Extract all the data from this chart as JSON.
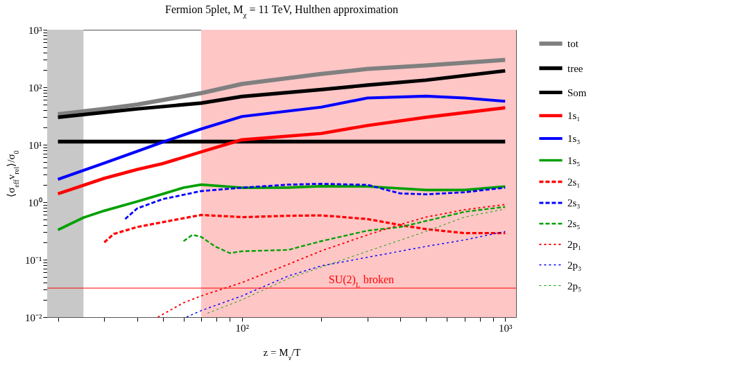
{
  "chart_data": {
    "type": "line",
    "title": "Fermion 5plet, M$_{χ}$ = 11 TeV, Hulthen approximation",
    "xlabel": "z = M$_{χ}$/T",
    "ylabel": "⟨σ$_{eff}$v$_{rel}$⟩/σ$_{0}$",
    "log": "xy",
    "legend": "right",
    "marker": "none",
    "xlim": [
      18.2,
      1100
    ],
    "ylim": [
      0.01,
      1000
    ],
    "xticks": [
      {
        "value": 20,
        "label": null
      },
      {
        "value": 30,
        "label": null
      },
      {
        "value": 40,
        "label": null
      },
      {
        "value": 50,
        "label": null
      },
      {
        "value": 60,
        "label": null
      },
      {
        "value": 70,
        "label": null
      },
      {
        "value": 80,
        "label": null
      },
      {
        "value": 90,
        "label": null
      },
      {
        "value": 100,
        "label": "10²"
      },
      {
        "value": 200,
        "label": null
      },
      {
        "value": 300,
        "label": null
      },
      {
        "value": 400,
        "label": null
      },
      {
        "value": 500,
        "label": null
      },
      {
        "value": 600,
        "label": null
      },
      {
        "value": 700,
        "label": null
      },
      {
        "value": 800,
        "label": null
      },
      {
        "value": 900,
        "label": null
      },
      {
        "value": 1000,
        "label": "10³"
      }
    ],
    "yticks": [
      {
        "value": 0.01,
        "label": "10⁻²"
      },
      {
        "value": 0.02,
        "label": null
      },
      {
        "value": 0.03,
        "label": null
      },
      {
        "value": 0.04,
        "label": null
      },
      {
        "value": 0.05,
        "label": null
      },
      {
        "value": 0.06,
        "label": null
      },
      {
        "value": 0.07,
        "label": null
      },
      {
        "value": 0.08,
        "label": null
      },
      {
        "value": 0.09,
        "label": null
      },
      {
        "value": 0.1,
        "label": "10⁻¹"
      },
      {
        "value": 0.2,
        "label": null
      },
      {
        "value": 0.3,
        "label": null
      },
      {
        "value": 0.4,
        "label": null
      },
      {
        "value": 0.5,
        "label": null
      },
      {
        "value": 0.6,
        "label": null
      },
      {
        "value": 0.7,
        "label": null
      },
      {
        "value": 0.8,
        "label": null
      },
      {
        "value": 0.9,
        "label": null
      },
      {
        "value": 1,
        "label": "10⁰"
      },
      {
        "value": 2,
        "label": null
      },
      {
        "value": 3,
        "label": null
      },
      {
        "value": 4,
        "label": null
      },
      {
        "value": 5,
        "label": null
      },
      {
        "value": 6,
        "label": null
      },
      {
        "value": 7,
        "label": null
      },
      {
        "value": 8,
        "label": null
      },
      {
        "value": 9,
        "label": null
      },
      {
        "value": 10,
        "label": "10¹"
      },
      {
        "value": 20,
        "label": null
      },
      {
        "value": 30,
        "label": null
      },
      {
        "value": 40,
        "label": null
      },
      {
        "value": 50,
        "label": null
      },
      {
        "value": 60,
        "label": null
      },
      {
        "value": 70,
        "label": null
      },
      {
        "value": 80,
        "label": null
      },
      {
        "value": 90,
        "label": null
      },
      {
        "value": 100,
        "label": "10²"
      },
      {
        "value": 200,
        "label": null
      },
      {
        "value": 300,
        "label": null
      },
      {
        "value": 400,
        "label": null
      },
      {
        "value": 500,
        "label": null
      },
      {
        "value": 600,
        "label": null
      },
      {
        "value": 700,
        "label": null
      },
      {
        "value": 800,
        "label": null
      },
      {
        "value": 900,
        "label": null
      },
      {
        "value": 1000,
        "label": "10³"
      }
    ],
    "bands": [
      {
        "axis": "x",
        "from": 18.2,
        "to": 25,
        "color": "#c8c8c8"
      },
      {
        "axis": "x",
        "from": 70,
        "to": 1100,
        "color": "#ffc6c6"
      }
    ],
    "ref_lines": [
      {
        "axis": "y",
        "value": 0.032,
        "label": "SU(2)$_{L}$ broken",
        "color": "#ff0000"
      }
    ],
    "series": [
      {
        "name": "tot",
        "color": "#808080",
        "line_style": "solid",
        "x": [
          20,
          30,
          40,
          70,
          100,
          200,
          300,
          500,
          1000
        ],
        "values": [
          34,
          42,
          50,
          79,
          114,
          171,
          208,
          239,
          300
        ]
      },
      {
        "name": "tree",
        "color": "#000000",
        "line_style": "solid",
        "x": [
          20,
          1000
        ],
        "values": [
          11.3,
          11.3
        ]
      },
      {
        "name": "Som",
        "color": "#000000",
        "line_style": "solid",
        "x": [
          20,
          40,
          70,
          100,
          200,
          300,
          500,
          1000
        ],
        "values": [
          30,
          42,
          53,
          69,
          91,
          109,
          133,
          193
        ]
      },
      {
        "name": "1s₁",
        "color": "#ff0000",
        "line_style": "solid",
        "x": [
          20,
          30,
          40,
          50,
          70,
          100,
          200,
          300,
          500,
          1000
        ],
        "values": [
          1.4,
          2.6,
          3.7,
          4.7,
          7.5,
          12.2,
          15.7,
          21.6,
          30,
          44
        ]
      },
      {
        "name": "1s₃",
        "color": "#0000ff",
        "line_style": "solid",
        "x": [
          20,
          30,
          40,
          50,
          70,
          100,
          200,
          300,
          500,
          700,
          1000
        ],
        "values": [
          2.5,
          4.8,
          7.7,
          11.1,
          18.8,
          31,
          45,
          65,
          70,
          65,
          57
        ]
      },
      {
        "name": "1s₅",
        "color": "#00a000",
        "line_style": "solid",
        "x": [
          20,
          25,
          30,
          40,
          50,
          60,
          70,
          100,
          150,
          200,
          300,
          500,
          700,
          1000
        ],
        "values": [
          0.33,
          0.54,
          0.71,
          1.03,
          1.39,
          1.79,
          2.02,
          1.79,
          1.8,
          1.9,
          1.88,
          1.63,
          1.63,
          1.88
        ]
      },
      {
        "name": "2s₁",
        "color": "#ff0000",
        "line_style": "dashed",
        "x": [
          30,
          32.6,
          40,
          50,
          70,
          100,
          150,
          200,
          300,
          400,
          500,
          700,
          1000
        ],
        "values": [
          0.2,
          0.28,
          0.37,
          0.45,
          0.6,
          0.55,
          0.58,
          0.59,
          0.51,
          0.4,
          0.34,
          0.29,
          0.29
        ]
      },
      {
        "name": "2s₃",
        "color": "#0000ff",
        "line_style": "dashed",
        "x": [
          36,
          40,
          50,
          70,
          100,
          150,
          200,
          300,
          400,
          500,
          700,
          1000
        ],
        "values": [
          0.51,
          0.78,
          1.13,
          1.56,
          1.79,
          2.02,
          2.09,
          2.0,
          1.42,
          1.37,
          1.49,
          1.79
        ]
      },
      {
        "name": "2s₅",
        "color": "#00a000",
        "line_style": "dashed",
        "x": [
          60,
          64.8,
          70,
          79,
          90,
          100,
          150,
          200,
          300,
          400,
          500,
          700,
          1000
        ],
        "values": [
          0.21,
          0.27,
          0.25,
          0.17,
          0.13,
          0.14,
          0.148,
          0.21,
          0.32,
          0.37,
          0.47,
          0.68,
          0.83
        ]
      },
      {
        "name": "2p₁",
        "color": "#ff0000",
        "line_style": "dotted",
        "x": [
          47.9,
          60,
          70,
          100,
          150,
          200,
          300,
          400,
          500,
          700,
          1000
        ],
        "values": [
          0.01,
          0.0178,
          0.0234,
          0.04,
          0.083,
          0.142,
          0.27,
          0.41,
          0.55,
          0.74,
          0.91
        ]
      },
      {
        "name": "2p₃",
        "color": "#0000ff",
        "line_style": "dotted",
        "x": [
          61.6,
          70,
          100,
          150,
          200,
          300,
          500,
          700,
          1000
        ],
        "values": [
          0.01,
          0.013,
          0.0234,
          0.052,
          0.078,
          0.11,
          0.17,
          0.22,
          0.31
        ]
      },
      {
        "name": "2p₅",
        "color": "#00a000",
        "line_style": "dotted",
        "x": [
          74,
          100,
          150,
          200,
          300,
          500,
          700,
          1000
        ],
        "values": [
          0.0117,
          0.02,
          0.047,
          0.074,
          0.14,
          0.31,
          0.55,
          0.76
        ]
      }
    ]
  }
}
